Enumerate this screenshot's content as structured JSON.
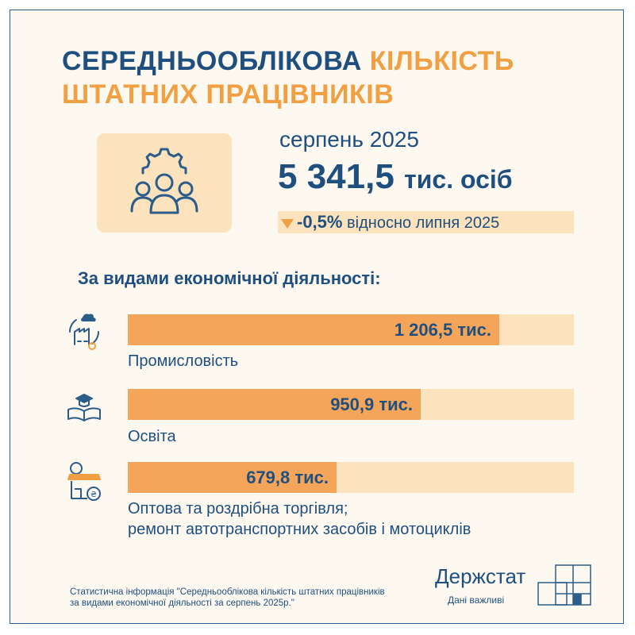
{
  "title": {
    "part1": "СЕРЕДНЬООБЛІКОВА",
    "part2": "КІЛЬКІСТЬ",
    "part3": "ШТАТНИХ ПРАЦІВНИКІВ"
  },
  "summary": {
    "period": "серпень 2025",
    "value": "5 341,5",
    "unit": "тис. осіб",
    "change": "-0,5%",
    "change_text": "відносно липня 2025"
  },
  "section_title": "За видами економічної діяльності:",
  "chart_data": {
    "type": "bar",
    "orientation": "horizontal",
    "categories": [
      "Промисловість",
      "Освіта",
      "Оптова та роздрібна торгівля; ремонт автотранспортних засобів і мотоциклів"
    ],
    "values": [
      1206.5,
      950.9,
      679.8
    ],
    "value_labels": [
      "1 206,5 тис.",
      "950,9 тис.",
      "679,8 тис."
    ],
    "xlim": [
      0,
      1450
    ],
    "colors": {
      "fill": "#f5a55a",
      "track": "#fde2be"
    }
  },
  "labels": {
    "cat3_line1": "Оптова та роздрібна торгівля;",
    "cat3_line2": "ремонт автотранспортних засобів і мотоциклів"
  },
  "footnote": {
    "line1": "Статистична інформація \"Середньооблікова кількість штатних працівників",
    "line2": "за видами економічної діяльності за серпень 2025р.\""
  },
  "logo": {
    "name": "Держстат",
    "tagline": "Дані важливі"
  },
  "icons": [
    "people-gear-icon",
    "factory-icon",
    "education-icon",
    "shop-icon",
    "logo-grid-icon"
  ],
  "colors": {
    "primary": "#1f4f7f",
    "accent": "#f0a043",
    "light": "#fde2be",
    "background": "#fdf8f0"
  }
}
